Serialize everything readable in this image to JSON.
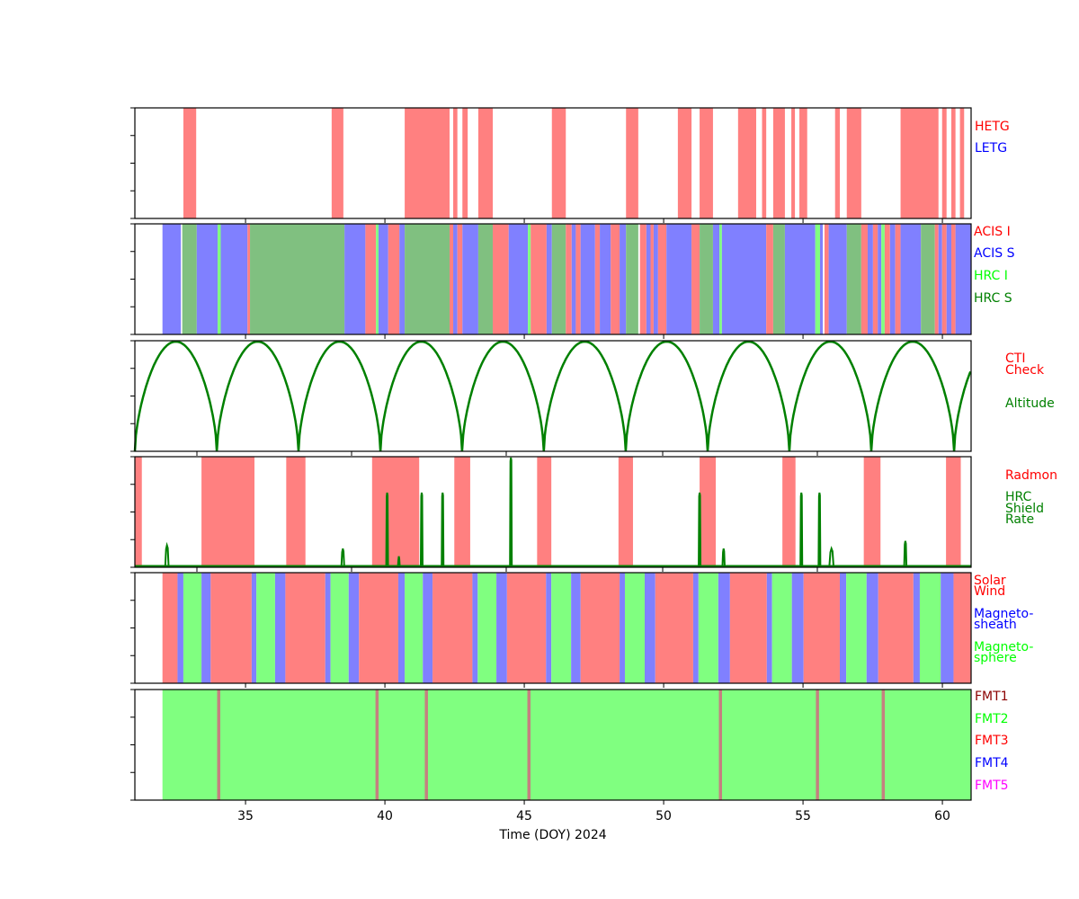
{
  "chart_data": {
    "type": "timeline",
    "xlabel": "Time (DOY) 2024",
    "xlim": [
      31.03,
      61.03
    ],
    "xticks": [
      35,
      40,
      45,
      50,
      55,
      60
    ],
    "panels": [
      {
        "name": "grating",
        "legend": [
          {
            "label": "HETG",
            "color": "#ff0000"
          },
          {
            "label": "LETG",
            "color": "#0000ff"
          }
        ],
        "intervals": [
          [
            32.77,
            33.23,
            "HETG"
          ],
          [
            38.09,
            38.51,
            "HETG"
          ],
          [
            40.71,
            42.32,
            "HETG"
          ],
          [
            42.45,
            42.6,
            "HETG"
          ],
          [
            42.78,
            42.97,
            "HETG"
          ],
          [
            43.35,
            43.87,
            "HETG"
          ],
          [
            45.99,
            46.49,
            "HETG"
          ],
          [
            48.65,
            49.09,
            "HETG"
          ],
          [
            50.51,
            51.0,
            "HETG"
          ],
          [
            51.29,
            51.77,
            "HETG"
          ],
          [
            52.67,
            53.32,
            "HETG"
          ],
          [
            53.53,
            53.68,
            "HETG"
          ],
          [
            53.93,
            54.35,
            "HETG"
          ],
          [
            54.58,
            54.71,
            "HETG"
          ],
          [
            54.87,
            55.15,
            "HETG"
          ],
          [
            56.15,
            56.32,
            "HETG"
          ],
          [
            56.57,
            57.09,
            "HETG"
          ],
          [
            58.5,
            59.86,
            "HETG"
          ],
          [
            59.99,
            60.15,
            "HETG"
          ],
          [
            60.32,
            60.47,
            "HETG"
          ],
          [
            60.63,
            60.78,
            "HETG"
          ]
        ],
        "fill": {
          "HETG": "#ff8080",
          "LETG": "#8080ff"
        }
      },
      {
        "name": "instrument",
        "legend": [
          {
            "label": "ACIS I",
            "color": "#ff0000"
          },
          {
            "label": "ACIS S",
            "color": "#0000ff"
          },
          {
            "label": "HRC I",
            "color": "#00ff00"
          },
          {
            "label": "HRC S",
            "color": "#008000"
          }
        ],
        "fill": {
          "ACIS I": "#ff8080",
          "ACIS S": "#8080ff",
          "HRC I": "#80ff80",
          "HRC S": "#80c080"
        },
        "intervals": [
          [
            32.02,
            32.68,
            "ACIS S"
          ],
          [
            32.73,
            33.25,
            "HRC S"
          ],
          [
            33.25,
            34.0,
            "ACIS S"
          ],
          [
            34.0,
            34.11,
            "HRC I"
          ],
          [
            34.11,
            35.07,
            "ACIS S"
          ],
          [
            35.07,
            35.16,
            "ACIS I"
          ],
          [
            35.16,
            38.55,
            "HRC S"
          ],
          [
            38.55,
            39.3,
            "ACIS S"
          ],
          [
            39.3,
            39.68,
            "ACIS I"
          ],
          [
            39.68,
            39.77,
            "HRC I"
          ],
          [
            39.77,
            40.12,
            "ACIS S"
          ],
          [
            40.12,
            40.52,
            "ACIS I"
          ],
          [
            40.52,
            40.71,
            "ACIS S"
          ],
          [
            40.71,
            42.32,
            "HRC S"
          ],
          [
            42.32,
            42.45,
            "ACIS I"
          ],
          [
            42.45,
            42.6,
            "ACIS S"
          ],
          [
            42.6,
            42.78,
            "ACIS I"
          ],
          [
            42.78,
            43.35,
            "ACIS S"
          ],
          [
            43.35,
            43.87,
            "HRC S"
          ],
          [
            43.87,
            44.44,
            "ACIS I"
          ],
          [
            44.44,
            45.13,
            "ACIS S"
          ],
          [
            45.13,
            45.23,
            "HRC I"
          ],
          [
            45.23,
            45.8,
            "ACIS I"
          ],
          [
            45.8,
            45.99,
            "ACIS S"
          ],
          [
            45.99,
            46.49,
            "HRC S"
          ],
          [
            46.49,
            46.7,
            "ACIS I"
          ],
          [
            46.7,
            46.85,
            "ACIS S"
          ],
          [
            46.85,
            47.02,
            "ACIS I"
          ],
          [
            47.02,
            47.54,
            "ACIS S"
          ],
          [
            47.54,
            47.71,
            "ACIS I"
          ],
          [
            47.71,
            48.1,
            "ACIS S"
          ],
          [
            48.1,
            48.42,
            "ACIS I"
          ],
          [
            48.42,
            48.65,
            "ACIS S"
          ],
          [
            48.65,
            49.09,
            "HRC S"
          ],
          [
            49.15,
            49.38,
            "ACIS I"
          ],
          [
            49.38,
            49.53,
            "ACIS S"
          ],
          [
            49.53,
            49.64,
            "ACIS I"
          ],
          [
            49.64,
            49.8,
            "ACIS S"
          ],
          [
            49.8,
            50.1,
            "ACIS I"
          ],
          [
            50.1,
            51.0,
            "ACIS S"
          ],
          [
            51.0,
            51.29,
            "ACIS I"
          ],
          [
            51.29,
            51.77,
            "HRC S"
          ],
          [
            51.77,
            52.0,
            "ACIS S"
          ],
          [
            52.0,
            52.09,
            "HRC I"
          ],
          [
            52.09,
            53.68,
            "ACIS S"
          ],
          [
            53.68,
            53.93,
            "ACIS I"
          ],
          [
            53.93,
            54.35,
            "HRC S"
          ],
          [
            54.35,
            55.44,
            "ACIS S"
          ],
          [
            55.44,
            55.61,
            "HRC I"
          ],
          [
            55.61,
            55.71,
            "ACIS S"
          ],
          [
            55.77,
            55.92,
            "ACIS I"
          ],
          [
            55.92,
            56.57,
            "ACIS S"
          ],
          [
            56.57,
            57.09,
            "HRC S"
          ],
          [
            57.09,
            57.32,
            "ACIS I"
          ],
          [
            57.32,
            57.51,
            "ACIS S"
          ],
          [
            57.51,
            57.68,
            "ACIS I"
          ],
          [
            57.68,
            57.81,
            "ACIS S"
          ],
          [
            57.81,
            57.93,
            "HRC I"
          ],
          [
            57.93,
            58.12,
            "ACIS I"
          ],
          [
            58.12,
            58.31,
            "ACIS S"
          ],
          [
            58.31,
            58.5,
            "ACIS I"
          ],
          [
            58.5,
            59.23,
            "ACIS S"
          ],
          [
            59.23,
            59.73,
            "HRC S"
          ],
          [
            59.73,
            59.86,
            "ACIS I"
          ],
          [
            59.86,
            59.99,
            "ACIS S"
          ],
          [
            59.99,
            60.15,
            "ACIS I"
          ],
          [
            60.15,
            60.32,
            "ACIS S"
          ],
          [
            60.32,
            60.47,
            "ACIS I"
          ],
          [
            60.47,
            61.03,
            "ACIS S"
          ]
        ]
      },
      {
        "name": "altitude",
        "legend": [
          {
            "label": "CTI",
            "color": "#ff0000"
          },
          {
            "label": "Check",
            "color": "#ff0000"
          },
          {
            "label": "Altitude",
            "color": "#008000"
          }
        ],
        "perigee_doy": [
          31.03,
          33.97,
          36.9,
          39.84,
          42.77,
          45.7,
          48.64,
          51.58,
          54.51,
          57.45,
          60.42,
          63.35
        ],
        "line_color": "#008000"
      },
      {
        "name": "radiation",
        "legend": [
          {
            "label": "Radmon",
            "color": "#ff0000"
          },
          {
            "label": "HRC",
            "color": "#008000"
          },
          {
            "label": "Shield",
            "color": "#008000"
          },
          {
            "label": "Rate",
            "color": "#008000"
          }
        ],
        "fill": {
          "Radmon": "#ff8080"
        },
        "intervals": [
          [
            31.03,
            31.28,
            "Radmon"
          ],
          [
            33.42,
            35.32,
            "Radmon"
          ],
          [
            36.46,
            37.15,
            "Radmon"
          ],
          [
            39.54,
            41.23,
            "Radmon"
          ],
          [
            42.49,
            43.06,
            "Radmon"
          ],
          [
            45.46,
            45.97,
            "Radmon"
          ],
          [
            48.38,
            48.9,
            "Radmon"
          ],
          [
            51.29,
            51.87,
            "Radmon"
          ],
          [
            54.26,
            54.73,
            "Radmon"
          ],
          [
            57.18,
            57.78,
            "Radmon"
          ],
          [
            60.13,
            60.66,
            "Radmon"
          ]
        ],
        "shield_rate_peaks": {
          "x": [
            32.18,
            38.49,
            40.08,
            40.5,
            41.32,
            42.07,
            44.52,
            51.29,
            52.15,
            54.94,
            55.59,
            56.02,
            58.67
          ],
          "y": [
            0.2,
            0.17,
            0.68,
            0.1,
            0.68,
            0.68,
            1.0,
            0.68,
            0.17,
            0.68,
            0.68,
            0.17,
            0.24
          ],
          "width_days": [
            0.12,
            0.1,
            0.02,
            0.06,
            0.02,
            0.02,
            0.05,
            0.02,
            0.08,
            0.02,
            0.02,
            0.15,
            0.08
          ]
        },
        "line_color": "#008000"
      },
      {
        "name": "region",
        "legend": [
          {
            "label": "Solar",
            "color": "#ff0000"
          },
          {
            "label": "Wind",
            "color": "#ff0000"
          },
          {
            "label": "Magneto-",
            "color": "#0000ff"
          },
          {
            "label": "sheath",
            "color": "#0000ff"
          },
          {
            "label": "Magneto-",
            "color": "#00ff00"
          },
          {
            "label": "sphere",
            "color": "#00ff00"
          }
        ],
        "fill": {
          "Solar Wind": "#ff8080",
          "Magnetosheath": "#8080ff",
          "Magnetosphere": "#80ff80"
        },
        "boundaries": [
          32.02,
          32.56,
          32.77,
          33.42,
          33.75,
          35.22,
          35.39,
          36.06,
          36.43,
          37.86,
          38.05,
          38.7,
          39.07,
          40.48,
          40.71,
          41.36,
          41.71,
          43.14,
          43.33,
          44.0,
          44.38,
          45.78,
          45.97,
          46.68,
          47.02,
          48.42,
          48.61,
          49.32,
          49.7,
          51.06,
          51.25,
          51.96,
          52.38,
          53.7,
          53.89,
          54.6,
          55.02,
          56.32,
          56.55,
          57.28,
          57.7,
          58.96,
          59.19,
          59.94,
          60.4,
          61.03
        ],
        "cycle": [
          "Solar Wind",
          "Magnetosheath",
          "Magnetosphere",
          "Magnetosheath"
        ]
      },
      {
        "name": "format",
        "legend": [
          {
            "label": "FMT1",
            "color": "#8b0000"
          },
          {
            "label": "FMT2",
            "color": "#00ff00"
          },
          {
            "label": "FMT3",
            "color": "#ff0000"
          },
          {
            "label": "FMT4",
            "color": "#0000ff"
          },
          {
            "label": "FMT5",
            "color": "#ff00ff"
          }
        ],
        "fill": {
          "FMT1": "#c58080",
          "FMT2": "#80ff80"
        },
        "intervals": [
          [
            32.02,
            61.03,
            "FMT2"
          ]
        ],
        "fmt1_marks": [
          34.03,
          39.71,
          41.48,
          45.16,
          52.03,
          55.51,
          57.87
        ]
      }
    ]
  }
}
